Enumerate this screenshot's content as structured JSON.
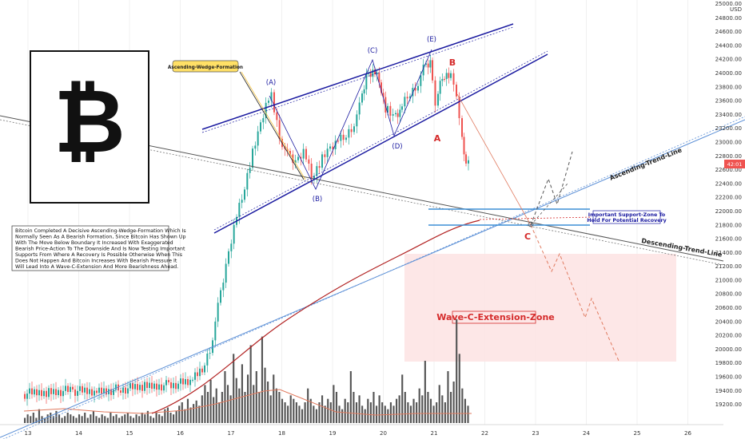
{
  "chart_data": {
    "type": "candlestick",
    "y_axis": {
      "currency": "USD",
      "ticks": [
        "24800.00",
        "24600.00",
        "24400.00",
        "24200.00",
        "24000.00",
        "23800.00",
        "23600.00",
        "23400.00",
        "23200.00",
        "23000.00",
        "22800.00",
        "22600.00",
        "22400.00",
        "22200.00",
        "22000.00",
        "21800.00",
        "21600.00",
        "21400.00",
        "21200.00",
        "21000.00",
        "20800.00",
        "20600.00",
        "20400.00",
        "20200.00",
        "20000.00",
        "19800.00",
        "19600.00",
        "19400.00",
        "19200.00"
      ],
      "top_label": "25000.00",
      "ylim": [
        19080,
        25000
      ]
    },
    "x_axis": {
      "ticks": [
        "13",
        "14",
        "15",
        "16",
        "17",
        "18",
        "19",
        "20",
        "21",
        "22",
        "23",
        "24",
        "25",
        "26"
      ]
    },
    "last_price": {
      "value": 22700,
      "label": "42:01"
    },
    "volume_series": {
      "description_values": [
        3,
        5,
        4,
        6,
        3,
        8,
        4,
        3,
        5,
        6,
        4,
        7,
        5,
        3,
        4,
        6,
        5,
        4,
        3,
        5,
        4,
        6,
        3,
        5,
        7,
        4,
        3,
        5,
        4,
        3,
        6,
        4,
        5,
        3,
        4,
        5,
        6,
        4,
        3,
        5,
        4,
        6,
        5,
        7,
        4,
        3,
        6,
        5,
        4,
        8,
        9,
        6,
        5,
        7,
        10,
        12,
        8,
        14,
        9,
        11,
        13,
        10,
        16,
        22,
        18,
        25,
        15,
        20,
        12,
        18,
        30,
        22,
        16,
        40,
        26,
        20,
        34,
        18,
        28,
        45,
        22,
        30,
        18,
        50,
        32,
        24,
        16,
        28,
        20,
        18,
        14,
        12,
        10,
        16,
        14,
        12,
        10,
        8,
        12,
        20,
        14,
        10,
        8,
        12,
        16,
        10,
        14,
        12,
        22,
        18,
        10,
        8,
        14,
        12,
        30,
        18,
        12,
        16,
        10,
        8,
        14,
        12,
        18,
        10,
        16,
        12,
        10,
        8,
        12,
        10,
        14,
        16,
        28,
        18,
        12,
        10,
        14,
        12,
        20,
        16,
        36,
        18,
        14,
        10,
        12,
        22,
        16,
        12,
        30,
        18,
        24,
        60,
        40,
        20,
        14,
        10
      ]
    },
    "annotations": {
      "pattern_label": "Ascending-Wedge-Formation",
      "waves": [
        "(A)",
        "(B)",
        "(C)",
        "(D)",
        "(E)"
      ],
      "wave_ab": [
        "A",
        "B",
        "C"
      ],
      "ascending_trend_line": "Ascending-Trend-Line",
      "descending_trend_line": "Descending-Trend-Line",
      "support_label_line1": "Important Support-Zone To",
      "support_label_line2": "Hold For Potential Recovery",
      "extension_zone_label": "Wave-C-Extension-Zone",
      "description_lines": [
        "Bitcoin Completed A Decisive Ascending-Wedge-Formation Which Is",
        "Normally Seen As A Bearish Formation, Since Bitcoin Has Shown Up",
        "With The Move Below Boundary It Increased With Exaggerated",
        "Bearish Price-Action To The Downside And Is Now Testing Important",
        "Supports From Where A Recovery Is Possible Otherwise When This",
        "Does Not Happen And Bitcoin Increases With Bearish Pressure It",
        "Will Lead Into A Wave-C-Extension And More Bearishness Ahead."
      ]
    },
    "colors": {
      "up": "#26a69a",
      "down": "#ef5350",
      "wedge": "#1a1aa0",
      "ma": "#b22222",
      "volume": "#555555",
      "zone": "#fde3e3",
      "support": "#3d8fd6"
    }
  },
  "logo": {
    "symbol": "₿"
  }
}
